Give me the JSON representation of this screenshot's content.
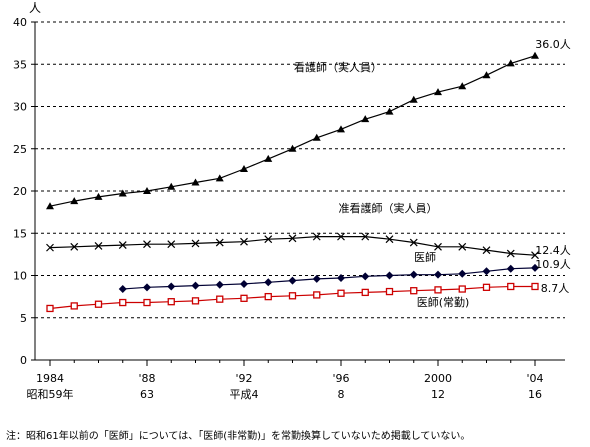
{
  "chart_data": {
    "type": "line",
    "y_unit": "人",
    "ylim": [
      0,
      40
    ],
    "y_ticks": [
      "0",
      "5",
      "10",
      "15",
      "20",
      "25",
      "30",
      "35",
      "40"
    ],
    "grid": "horizontal dashed",
    "x": [
      1984,
      1985,
      1986,
      1987,
      1988,
      1989,
      1990,
      1991,
      1992,
      1993,
      1994,
      1995,
      1996,
      1997,
      1998,
      1999,
      2000,
      2001,
      2002,
      2003,
      2004
    ],
    "x_ticks_western": [
      "1984",
      "'88",
      "'92",
      "'96",
      "2000",
      "'04"
    ],
    "x_ticks_era": [
      "昭和59年",
      "63",
      "平成4",
      "8",
      "12",
      "16"
    ],
    "series": [
      {
        "name": "看護師（実人員）",
        "color": "#000000",
        "marker": "triangle",
        "values": [
          18.2,
          18.8,
          19.3,
          19.7,
          20.0,
          20.5,
          21.0,
          21.5,
          22.6,
          23.8,
          25.0,
          26.3,
          27.3,
          28.5,
          29.4,
          30.8,
          31.7,
          32.4,
          33.7,
          35.1,
          36.0
        ],
        "end_label": "36.0人"
      },
      {
        "name": "准看護師（実人員）",
        "color": "#000000",
        "marker": "x",
        "values": [
          13.3,
          13.4,
          13.5,
          13.6,
          13.7,
          13.7,
          13.8,
          13.9,
          14.0,
          14.3,
          14.4,
          14.6,
          14.6,
          14.6,
          14.3,
          13.9,
          13.4,
          13.4,
          13.0,
          12.6,
          12.4
        ],
        "end_label": "12.4人"
      },
      {
        "name": "医師",
        "color": "#000033",
        "marker": "diamond",
        "values": [
          null,
          null,
          null,
          8.4,
          8.6,
          8.7,
          8.8,
          8.9,
          9.0,
          9.2,
          9.4,
          9.6,
          9.7,
          9.9,
          10.0,
          10.1,
          10.1,
          10.2,
          10.5,
          10.8,
          10.9
        ],
        "end_label": "10.9人"
      },
      {
        "name": "医師(常勤)",
        "color": "#cc0000",
        "marker": "square",
        "values": [
          6.1,
          6.4,
          6.6,
          6.8,
          6.8,
          6.9,
          7.0,
          7.2,
          7.3,
          7.5,
          7.6,
          7.7,
          7.9,
          8.0,
          8.1,
          8.2,
          8.3,
          8.4,
          8.6,
          8.7,
          8.7
        ],
        "end_label": "8.7人"
      }
    ]
  },
  "footnote": "注：昭和61年以前の「医師」については、「医師(非常勤)」を常勤換算していないため掲載していない。"
}
